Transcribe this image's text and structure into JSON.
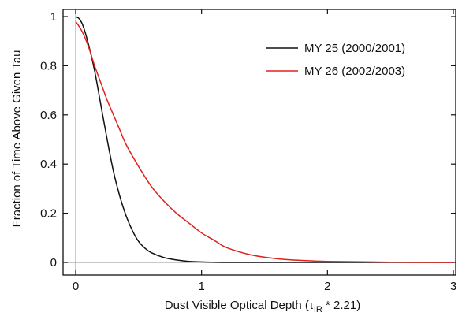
{
  "chart_data": {
    "type": "line",
    "title": "",
    "xlabel": {
      "prefix": "Dust Visible Optical Depth (",
      "symbol": "τ",
      "subscript": "IR",
      "suffix": " * 2.21)"
    },
    "ylabel": "Fraction of Time Above Given Tau",
    "xlim": [
      0,
      3
    ],
    "ylim": [
      0,
      1
    ],
    "x_ticks": [
      "0",
      "1",
      "2",
      "3"
    ],
    "y_ticks": [
      "0",
      "0.2",
      "0.4",
      "0.6",
      "0.8",
      "1"
    ],
    "grid": false,
    "reference_lines": [
      {
        "axis": "x",
        "value": 0
      },
      {
        "axis": "y",
        "value": 0
      }
    ],
    "legend_position": "top-right",
    "colors": {
      "black_series": "#111111",
      "red_series": "#e0201c",
      "reference": "#a6a6a6"
    },
    "series": [
      {
        "name": "MY 25  (2000/2001)",
        "color": "#111111",
        "x": [
          0.0,
          0.03,
          0.06,
          0.1,
          0.15,
          0.2,
          0.25,
          0.3,
          0.35,
          0.4,
          0.45,
          0.5,
          0.55,
          0.6,
          0.7,
          0.8,
          0.9,
          1.0,
          1.2,
          1.5,
          2.0,
          3.0
        ],
        "y": [
          1.0,
          0.99,
          0.96,
          0.89,
          0.78,
          0.64,
          0.5,
          0.37,
          0.27,
          0.19,
          0.13,
          0.085,
          0.058,
          0.04,
          0.02,
          0.01,
          0.004,
          0.002,
          0.0,
          0.0,
          0.0,
          0.0
        ]
      },
      {
        "name": "MY 26  (2002/2003)",
        "color": "#e0201c",
        "x": [
          0.0,
          0.05,
          0.1,
          0.15,
          0.2,
          0.25,
          0.3,
          0.35,
          0.4,
          0.5,
          0.6,
          0.7,
          0.8,
          0.9,
          1.0,
          1.1,
          1.2,
          1.4,
          1.6,
          1.8,
          2.0,
          2.5,
          3.0
        ],
        "y": [
          0.98,
          0.94,
          0.88,
          0.8,
          0.73,
          0.66,
          0.6,
          0.54,
          0.48,
          0.39,
          0.31,
          0.25,
          0.2,
          0.16,
          0.12,
          0.09,
          0.06,
          0.03,
          0.015,
          0.008,
          0.004,
          0.001,
          0.0
        ]
      }
    ]
  }
}
